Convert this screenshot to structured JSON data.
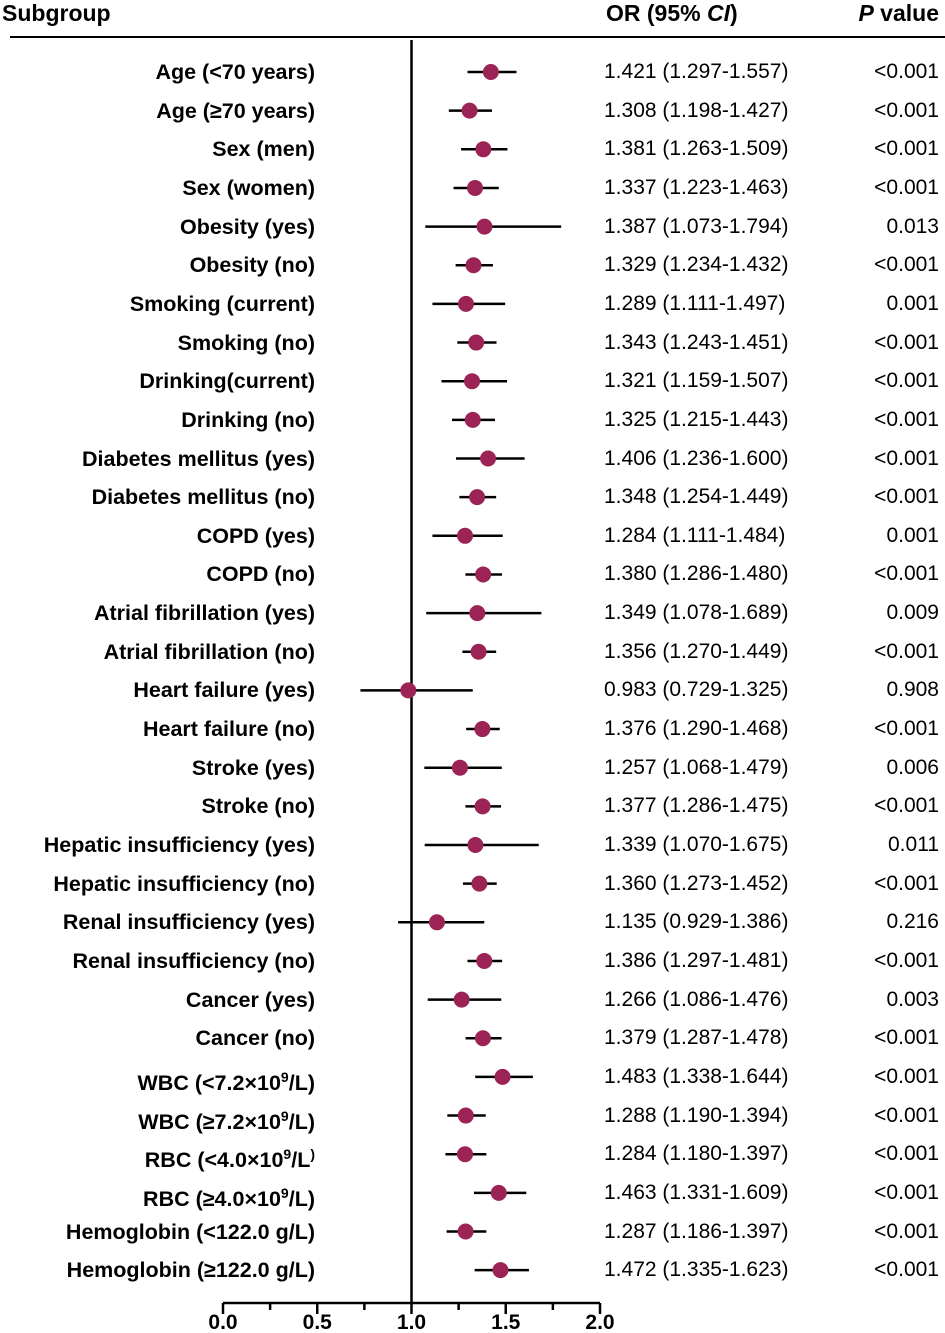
{
  "headers": {
    "subgroup": "Subgroup",
    "or_prefix": "OR (95% ",
    "or_ci": "CI",
    "or_suffix": ")",
    "p_italic": "P",
    "p_rest": " value"
  },
  "colors": {
    "marker": "#9b2355",
    "line": "#000000"
  },
  "chart_data": {
    "type": "forest",
    "xlim": [
      0.0,
      2.0
    ],
    "xticks": [
      "0.0",
      "0.5",
      "1.0",
      "1.5",
      "2.0"
    ],
    "reference_line": 1.0,
    "rows": [
      {
        "label": "Age (<70 years)",
        "or": 1.421,
        "lo": 1.297,
        "hi": 1.557,
        "ci_text": "1.421 (1.297-1.557)",
        "p": "<0.001"
      },
      {
        "label": "Age (≥70 years)",
        "or": 1.308,
        "lo": 1.198,
        "hi": 1.427,
        "ci_text": "1.308 (1.198-1.427)",
        "p": "<0.001"
      },
      {
        "label": "Sex (men)",
        "or": 1.381,
        "lo": 1.263,
        "hi": 1.509,
        "ci_text": "1.381 (1.263-1.509)",
        "p": "<0.001"
      },
      {
        "label": "Sex (women)",
        "or": 1.337,
        "lo": 1.223,
        "hi": 1.463,
        "ci_text": "1.337 (1.223-1.463)",
        "p": "<0.001"
      },
      {
        "label": "Obesity (yes)",
        "or": 1.387,
        "lo": 1.073,
        "hi": 1.794,
        "ci_text": "1.387 (1.073-1.794)",
        "p": "0.013"
      },
      {
        "label": "Obesity (no)",
        "or": 1.329,
        "lo": 1.234,
        "hi": 1.432,
        "ci_text": "1.329 (1.234-1.432)",
        "p": "<0.001"
      },
      {
        "label": "Smoking (current)",
        "or": 1.289,
        "lo": 1.111,
        "hi": 1.497,
        "ci_text": "1.289 (1.111-1.497)",
        "p": "0.001"
      },
      {
        "label": "Smoking (no)",
        "or": 1.343,
        "lo": 1.243,
        "hi": 1.451,
        "ci_text": "1.343 (1.243-1.451)",
        "p": "<0.001"
      },
      {
        "label": "Drinking(current)",
        "or": 1.321,
        "lo": 1.159,
        "hi": 1.507,
        "ci_text": "1.321 (1.159-1.507)",
        "p": "<0.001"
      },
      {
        "label": "Drinking (no)",
        "or": 1.325,
        "lo": 1.215,
        "hi": 1.443,
        "ci_text": "1.325 (1.215-1.443)",
        "p": "<0.001"
      },
      {
        "label": "Diabetes mellitus (yes)",
        "or": 1.406,
        "lo": 1.236,
        "hi": 1.6,
        "ci_text": "1.406 (1.236-1.600)",
        "p": "<0.001"
      },
      {
        "label": "Diabetes mellitus (no)",
        "or": 1.348,
        "lo": 1.254,
        "hi": 1.449,
        "ci_text": "1.348 (1.254-1.449)",
        "p": "<0.001"
      },
      {
        "label": "COPD (yes)",
        "or": 1.284,
        "lo": 1.111,
        "hi": 1.484,
        "ci_text": "1.284 (1.111-1.484)",
        "p": "0.001"
      },
      {
        "label": "COPD (no)",
        "or": 1.38,
        "lo": 1.286,
        "hi": 1.48,
        "ci_text": "1.380 (1.286-1.480)",
        "p": "<0.001"
      },
      {
        "label": "Atrial fibrillation (yes)",
        "or": 1.349,
        "lo": 1.078,
        "hi": 1.689,
        "ci_text": "1.349 (1.078-1.689)",
        "p": "0.009"
      },
      {
        "label": "Atrial fibrillation (no)",
        "or": 1.356,
        "lo": 1.27,
        "hi": 1.449,
        "ci_text": "1.356 (1.270-1.449)",
        "p": "<0.001"
      },
      {
        "label": "Heart failure (yes)",
        "or": 0.983,
        "lo": 0.729,
        "hi": 1.325,
        "ci_text": "0.983 (0.729-1.325)",
        "p": "0.908"
      },
      {
        "label": "Heart failure (no)",
        "or": 1.376,
        "lo": 1.29,
        "hi": 1.468,
        "ci_text": "1.376 (1.290-1.468)",
        "p": "<0.001"
      },
      {
        "label": "Stroke (yes)",
        "or": 1.257,
        "lo": 1.068,
        "hi": 1.479,
        "ci_text": "1.257 (1.068-1.479)",
        "p": "0.006"
      },
      {
        "label": "Stroke (no)",
        "or": 1.377,
        "lo": 1.286,
        "hi": 1.475,
        "ci_text": "1.377 (1.286-1.475)",
        "p": "<0.001"
      },
      {
        "label": "Hepatic insufficiency (yes)",
        "or": 1.339,
        "lo": 1.07,
        "hi": 1.675,
        "ci_text": "1.339 (1.070-1.675)",
        "p": "0.011"
      },
      {
        "label": "Hepatic insufficiency (no)",
        "or": 1.36,
        "lo": 1.273,
        "hi": 1.452,
        "ci_text": "1.360 (1.273-1.452)",
        "p": "<0.001"
      },
      {
        "label": "Renal insufficiency (yes)",
        "or": 1.135,
        "lo": 0.929,
        "hi": 1.386,
        "ci_text": "1.135 (0.929-1.386)",
        "p": "0.216"
      },
      {
        "label": "Renal insufficiency (no)",
        "or": 1.386,
        "lo": 1.297,
        "hi": 1.481,
        "ci_text": "1.386 (1.297-1.481)",
        "p": "<0.001"
      },
      {
        "label": "Cancer (yes)",
        "or": 1.266,
        "lo": 1.086,
        "hi": 1.476,
        "ci_text": "1.266 (1.086-1.476)",
        "p": "0.003"
      },
      {
        "label": "Cancer (no)",
        "or": 1.379,
        "lo": 1.287,
        "hi": 1.478,
        "ci_text": "1.379 (1.287-1.478)",
        "p": "<0.001"
      },
      {
        "label": "WBC (<7.2×10",
        "sup": "9",
        "label_end": "/L)",
        "or": 1.483,
        "lo": 1.338,
        "hi": 1.644,
        "ci_text": "1.483 (1.338-1.644)",
        "p": "<0.001"
      },
      {
        "label": "WBC (≥7.2×10",
        "sup": "9",
        "label_end": "/L)",
        "or": 1.288,
        "lo": 1.19,
        "hi": 1.394,
        "ci_text": "1.288 (1.190-1.394)",
        "p": "<0.001"
      },
      {
        "label": "RBC (<4.0×10",
        "sup": "9",
        "label_end": "/L",
        "sup_end": ")",
        "or": 1.284,
        "lo": 1.18,
        "hi": 1.397,
        "ci_text": "1.284 (1.180-1.397)",
        "p": "<0.001"
      },
      {
        "label": "RBC (≥4.0×10",
        "sup": "9",
        "label_end": "/L)",
        "or": 1.463,
        "lo": 1.331,
        "hi": 1.609,
        "ci_text": "1.463 (1.331-1.609)",
        "p": "<0.001"
      },
      {
        "label": "Hemoglobin (<122.0 g/L)",
        "or": 1.287,
        "lo": 1.186,
        "hi": 1.397,
        "ci_text": "1.287 (1.186-1.397)",
        "p": "<0.001"
      },
      {
        "label": "Hemoglobin (≥122.0 g/L)",
        "or": 1.472,
        "lo": 1.335,
        "hi": 1.623,
        "ci_text": "1.472 (1.335-1.623)",
        "p": "<0.001"
      }
    ]
  }
}
